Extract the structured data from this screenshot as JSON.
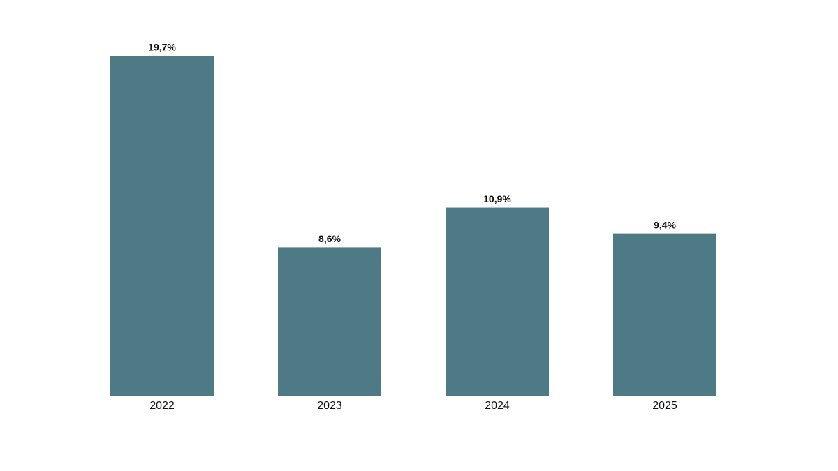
{
  "chart_data": {
    "type": "bar",
    "categories": [
      "2022",
      "2023",
      "2024",
      "2025"
    ],
    "values": [
      19.7,
      8.6,
      10.9,
      9.4
    ],
    "value_labels": [
      "19,7%",
      "8,6%",
      "10,9%",
      "9,4%"
    ],
    "color": "#4e7a85"
  }
}
